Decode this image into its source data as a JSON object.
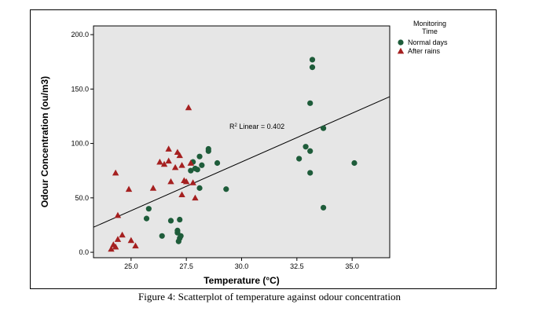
{
  "caption": "Figure 4: Scatterplot of temperature against odour concentration",
  "chart_data": {
    "type": "scatter",
    "xlabel": "Temperature (°C)",
    "ylabel": "Odour Concentration (ou/m3)",
    "xlim": [
      23.3,
      36.7
    ],
    "ylim": [
      -5,
      208
    ],
    "x_ticks": [
      25.0,
      27.5,
      30.0,
      32.5,
      35.0
    ],
    "x_tick_labels": [
      "25.0",
      "27.5",
      "30.0",
      "32.5",
      "35.0"
    ],
    "y_ticks": [
      0,
      50,
      100,
      150,
      200
    ],
    "y_tick_labels": [
      "0.0",
      "50.0",
      "100.0",
      "150.0",
      "200.0"
    ],
    "grid": false,
    "legend": {
      "title_lines": [
        "Monitoring",
        "Time"
      ],
      "placement": "outside-right-top"
    },
    "annotation": {
      "text": "R² Linear = 0.402"
    },
    "fit_line": {
      "x": [
        23.3,
        36.7
      ],
      "y": [
        23,
        143
      ]
    },
    "colors": {
      "Normal days": "#1e5c3a",
      "After rains": "#a52020",
      "plot_bg": "#e6e6e6",
      "fit_line": "#000000"
    },
    "series": [
      {
        "name": "Normal days",
        "marker": "circle",
        "points": [
          [
            25.7,
            31
          ],
          [
            25.8,
            40
          ],
          [
            26.4,
            15
          ],
          [
            26.8,
            29
          ],
          [
            27.1,
            20
          ],
          [
            27.1,
            18
          ],
          [
            27.15,
            10
          ],
          [
            27.2,
            30
          ],
          [
            27.2,
            13
          ],
          [
            27.25,
            15
          ],
          [
            27.7,
            75
          ],
          [
            27.8,
            83
          ],
          [
            27.9,
            77
          ],
          [
            28.0,
            76
          ],
          [
            28.1,
            88
          ],
          [
            28.1,
            59
          ],
          [
            28.2,
            80
          ],
          [
            28.5,
            95
          ],
          [
            28.5,
            93
          ],
          [
            28.9,
            82
          ],
          [
            29.3,
            58
          ],
          [
            32.6,
            86
          ],
          [
            32.9,
            97
          ],
          [
            33.1,
            93
          ],
          [
            33.1,
            137
          ],
          [
            33.1,
            73
          ],
          [
            33.2,
            177
          ],
          [
            33.2,
            170
          ],
          [
            33.7,
            114
          ],
          [
            33.7,
            41
          ],
          [
            35.1,
            82
          ]
        ]
      },
      {
        "name": "After rains",
        "marker": "triangle",
        "points": [
          [
            24.1,
            3
          ],
          [
            24.2,
            7
          ],
          [
            24.3,
            5
          ],
          [
            24.3,
            73
          ],
          [
            24.4,
            12
          ],
          [
            24.4,
            34
          ],
          [
            24.6,
            16
          ],
          [
            24.9,
            58
          ],
          [
            25.0,
            11
          ],
          [
            25.2,
            6
          ],
          [
            26.0,
            59
          ],
          [
            26.3,
            83
          ],
          [
            26.5,
            81
          ],
          [
            26.7,
            95
          ],
          [
            26.7,
            84
          ],
          [
            26.8,
            65
          ],
          [
            27.0,
            78
          ],
          [
            27.1,
            92
          ],
          [
            27.2,
            89
          ],
          [
            27.3,
            53
          ],
          [
            27.3,
            80
          ],
          [
            27.4,
            66
          ],
          [
            27.5,
            65
          ],
          [
            27.6,
            133
          ],
          [
            27.7,
            82
          ],
          [
            27.8,
            64
          ],
          [
            27.9,
            50
          ]
        ]
      }
    ]
  }
}
